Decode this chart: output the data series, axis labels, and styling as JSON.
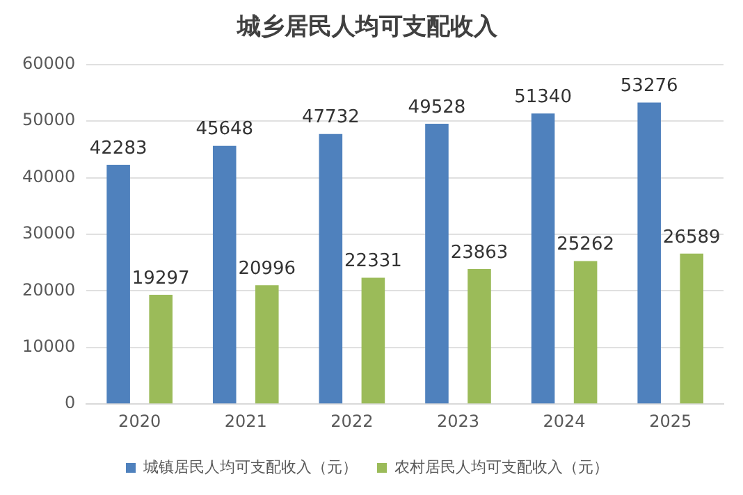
{
  "chart_data": {
    "type": "bar",
    "title": "城乡居民人均可支配收入",
    "categories": [
      "2020",
      "2021",
      "2022",
      "2023",
      "2024",
      "2025"
    ],
    "series": [
      {
        "name": "城镇居民人均可支配收入（元）",
        "color": "#4f81bd",
        "values": [
          42283,
          45648,
          47732,
          49528,
          51340,
          53276
        ]
      },
      {
        "name": "农村居民人均可支配收入（元）",
        "color": "#9bbb59",
        "values": [
          19297,
          20996,
          22331,
          23863,
          25262,
          26589
        ]
      }
    ],
    "ylim": [
      0,
      60000
    ],
    "yticks": [
      0,
      10000,
      20000,
      30000,
      40000,
      50000,
      60000
    ],
    "grid": "y",
    "legend": "bottom",
    "data_labels": true
  }
}
